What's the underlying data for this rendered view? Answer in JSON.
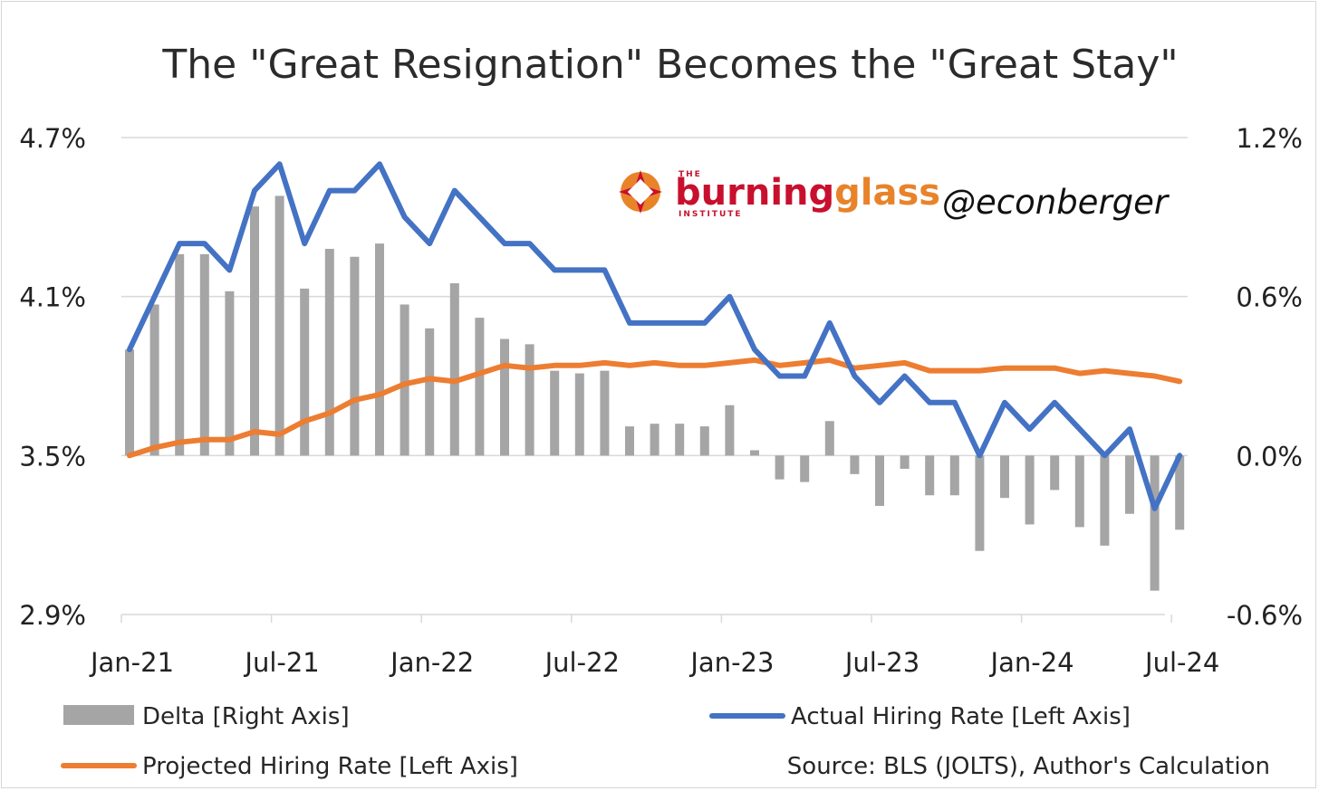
{
  "chart_data": {
    "type": "bar+line",
    "title": "The \"Great Resignation\" Becomes the \"Great Stay\"",
    "x_tick_labels": [
      "Jan-21",
      "Jul-21",
      "Jan-22",
      "Jul-22",
      "Jan-23",
      "Jul-23",
      "Jan-24",
      "Jul-24"
    ],
    "left_axis": {
      "ylim": [
        2.9,
        4.7
      ],
      "ticks": [
        "4.7%",
        "4.1%",
        "3.5%",
        "2.9%"
      ]
    },
    "right_axis": {
      "ylim": [
        -0.6,
        1.2
      ],
      "ticks": [
        "1.2%",
        "0.6%",
        "0.0%",
        "-0.6%"
      ]
    },
    "grid": "horizontal",
    "legend_position": "bottom",
    "series": [
      {
        "name": "Delta [Right Axis]",
        "kind": "bar",
        "axis": "right",
        "color": "#a5a5a5",
        "values": [
          0.4,
          0.57,
          0.76,
          0.76,
          0.62,
          0.94,
          0.98,
          0.63,
          0.78,
          0.75,
          0.8,
          0.57,
          0.48,
          0.65,
          0.52,
          0.44,
          0.42,
          0.32,
          0.31,
          0.32,
          0.11,
          0.12,
          0.12,
          0.11,
          0.19,
          0.02,
          -0.09,
          -0.1,
          0.13,
          -0.07,
          -0.19,
          -0.05,
          -0.15,
          -0.15,
          -0.36,
          -0.16,
          -0.26,
          -0.13,
          -0.27,
          -0.34,
          -0.22,
          -0.51,
          -0.28
        ]
      },
      {
        "name": "Actual Hiring Rate [Left Axis]",
        "kind": "line",
        "axis": "left",
        "color": "#4472c4",
        "values": [
          3.9,
          4.1,
          4.3,
          4.3,
          4.2,
          4.5,
          4.6,
          4.3,
          4.5,
          4.5,
          4.6,
          4.4,
          4.3,
          4.5,
          4.4,
          4.3,
          4.3,
          4.2,
          4.2,
          4.2,
          4.0,
          4.0,
          4.0,
          4.0,
          4.1,
          3.9,
          3.8,
          3.8,
          4.0,
          3.8,
          3.7,
          3.8,
          3.7,
          3.7,
          3.5,
          3.7,
          3.6,
          3.7,
          3.6,
          3.5,
          3.6,
          3.3,
          3.5
        ]
      },
      {
        "name": "Projected Hiring Rate [Left Axis]",
        "kind": "line",
        "axis": "left",
        "color": "#ed7d31",
        "values": [
          3.5,
          3.53,
          3.55,
          3.56,
          3.56,
          3.59,
          3.58,
          3.63,
          3.66,
          3.71,
          3.73,
          3.77,
          3.79,
          3.78,
          3.81,
          3.84,
          3.83,
          3.84,
          3.84,
          3.85,
          3.84,
          3.85,
          3.84,
          3.84,
          3.85,
          3.86,
          3.84,
          3.85,
          3.86,
          3.83,
          3.84,
          3.85,
          3.82,
          3.82,
          3.82,
          3.83,
          3.83,
          3.83,
          3.81,
          3.82,
          3.81,
          3.8,
          3.78
        ]
      }
    ],
    "source_note": "Source: BLS (JOLTS), Author's Calculation"
  },
  "branding": {
    "logo_top": "THE",
    "logo_word_1": "burning",
    "logo_word_2": "glass",
    "logo_sub": "INSTITUTE",
    "handle": "@econberger"
  }
}
